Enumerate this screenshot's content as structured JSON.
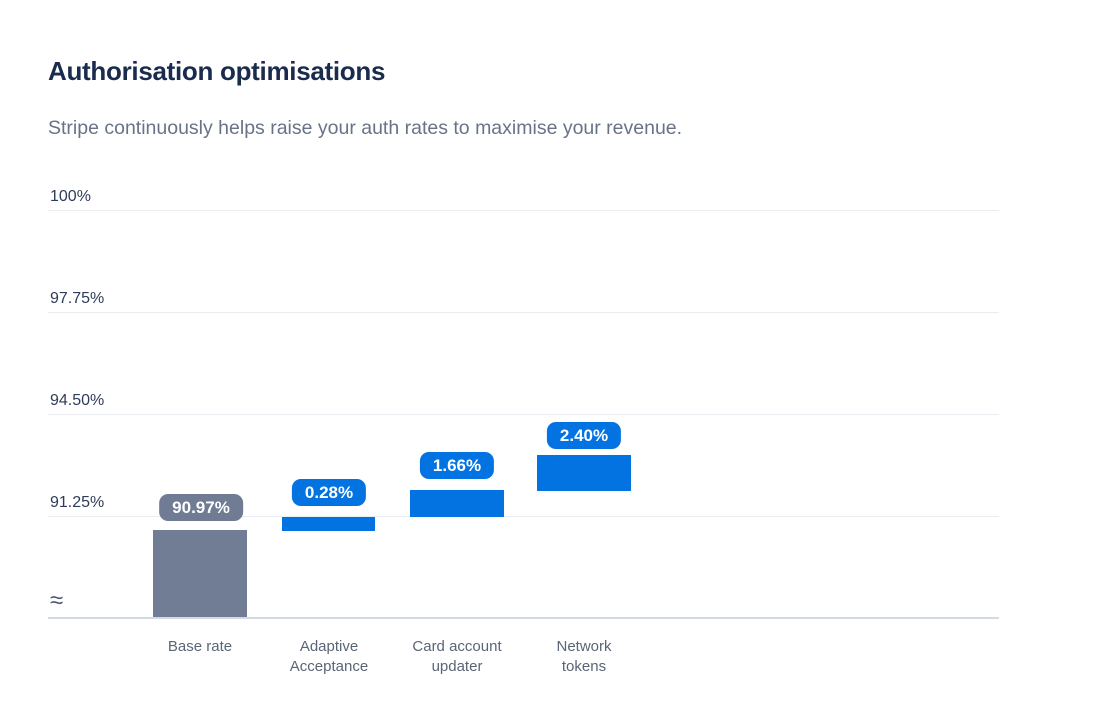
{
  "header": {
    "title": "Authorisation optimisations",
    "subtitle": "Stripe continuously helps raise your auth rates to maximise your revenue."
  },
  "chart_data": {
    "type": "bar",
    "variant": "waterfall",
    "title": "Authorisation optimisations",
    "categories": [
      "Base rate",
      "Adaptive Acceptance",
      "Card account updater",
      "Network tokens"
    ],
    "values": [
      90.97,
      0.28,
      1.66,
      2.4
    ],
    "value_labels": [
      "90.97%",
      "0.28%",
      "1.66%",
      "2.40%"
    ],
    "cumulative": [
      90.97,
      91.25,
      92.91,
      95.31
    ],
    "unit": "%",
    "xlabel": "",
    "ylabel": "",
    "y_ticks": [
      "100%",
      "97.75%",
      "94.50%",
      "91.25%"
    ],
    "y_tick_values": [
      100,
      97.75,
      94.5,
      91.25
    ],
    "ylim": [
      91.25,
      100
    ],
    "y_axis_break": true,
    "axis_break_symbol": "≈",
    "grid": true,
    "legend": false,
    "colors": {
      "base_bar": "#707d95",
      "increment_bar": "#0473e2",
      "base_pill": "#6f7c94",
      "increment_pill": "#0473e2",
      "pill_text": "#ffffff",
      "gridline": "#e9ecf1",
      "axis_line": "#d4dae3",
      "title_text": "#1a2b4d",
      "subtitle_text": "#697387",
      "tick_text": "#2e3c59",
      "category_text": "#5a6577"
    }
  }
}
